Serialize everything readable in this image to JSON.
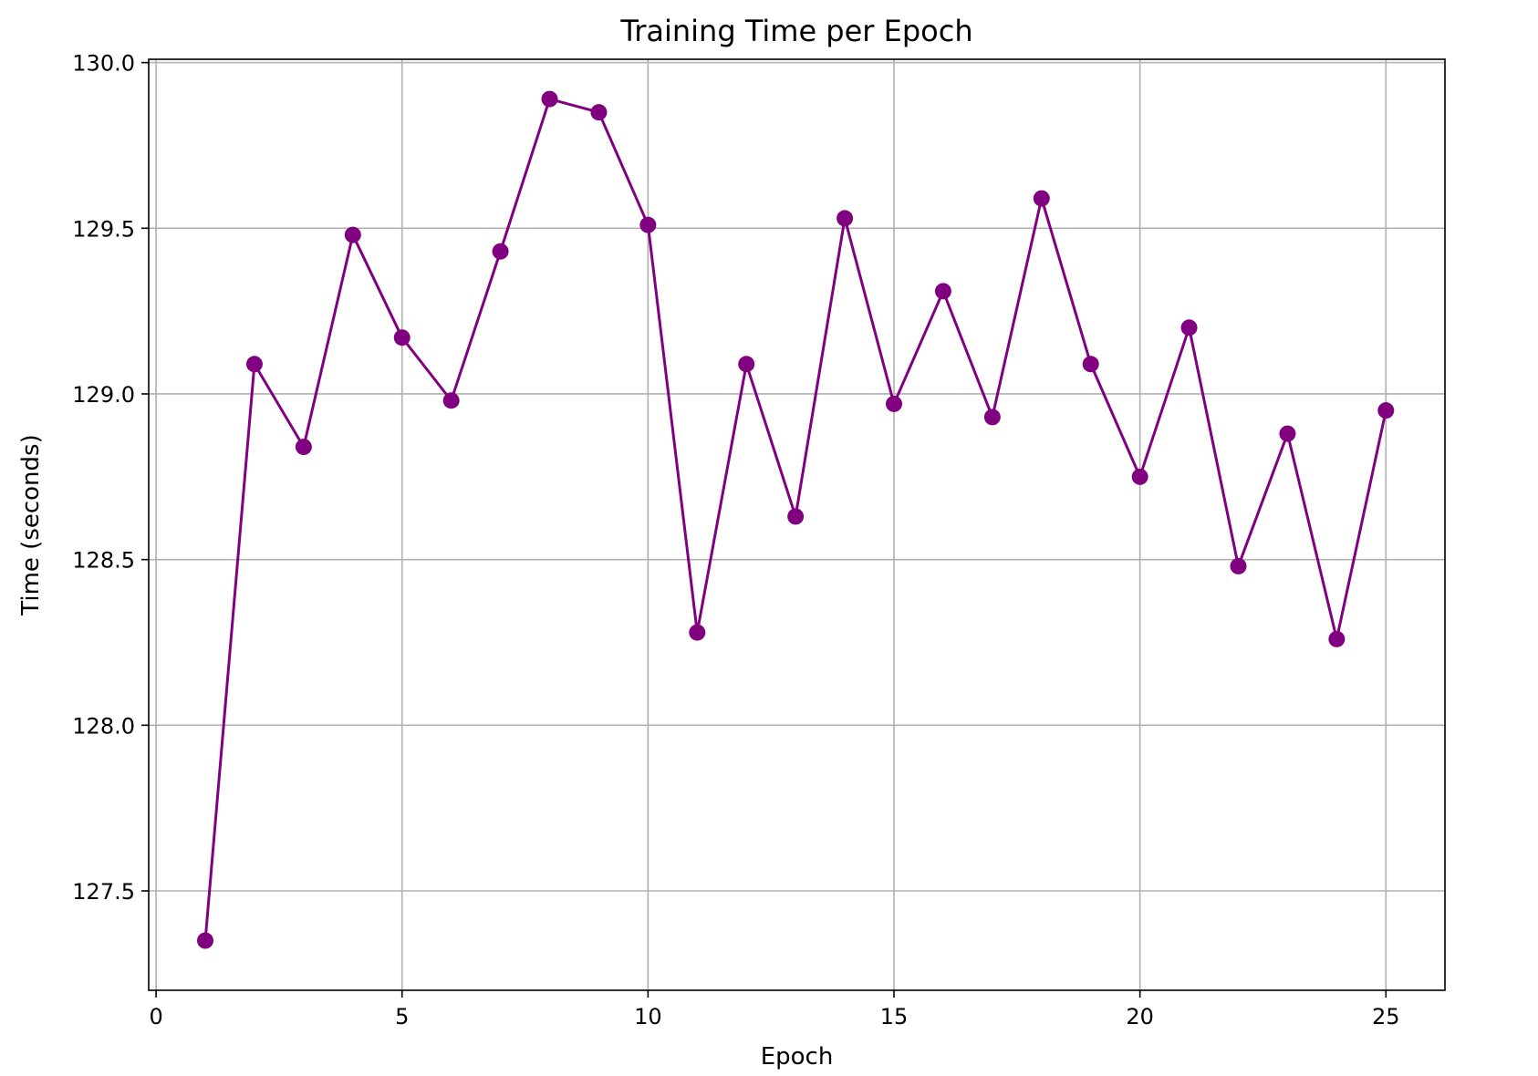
{
  "chart_data": {
    "type": "line",
    "title": "Training Time per Epoch",
    "xlabel": "Epoch",
    "ylabel": "Time (seconds)",
    "xlim": [
      -0.15,
      26.2
    ],
    "ylim": [
      127.2,
      130.01
    ],
    "x_ticks": [
      0,
      5,
      10,
      15,
      20,
      25
    ],
    "y_ticks": [
      127.5,
      128.0,
      128.5,
      129.0,
      129.5,
      130.0
    ],
    "grid": true,
    "legend": "none",
    "series": [
      {
        "color": "#800080",
        "marker": "circle",
        "x": [
          1,
          2,
          3,
          4,
          5,
          6,
          7,
          8,
          9,
          10,
          11,
          12,
          13,
          14,
          15,
          16,
          17,
          18,
          19,
          20,
          21,
          22,
          23,
          24,
          25
        ],
        "values": [
          127.35,
          129.09,
          128.84,
          129.48,
          129.17,
          128.98,
          129.43,
          129.89,
          129.85,
          129.51,
          128.28,
          129.09,
          128.63,
          129.53,
          128.97,
          129.31,
          128.93,
          129.59,
          129.09,
          128.75,
          129.2,
          128.48,
          128.88,
          128.26,
          128.95
        ]
      }
    ]
  }
}
